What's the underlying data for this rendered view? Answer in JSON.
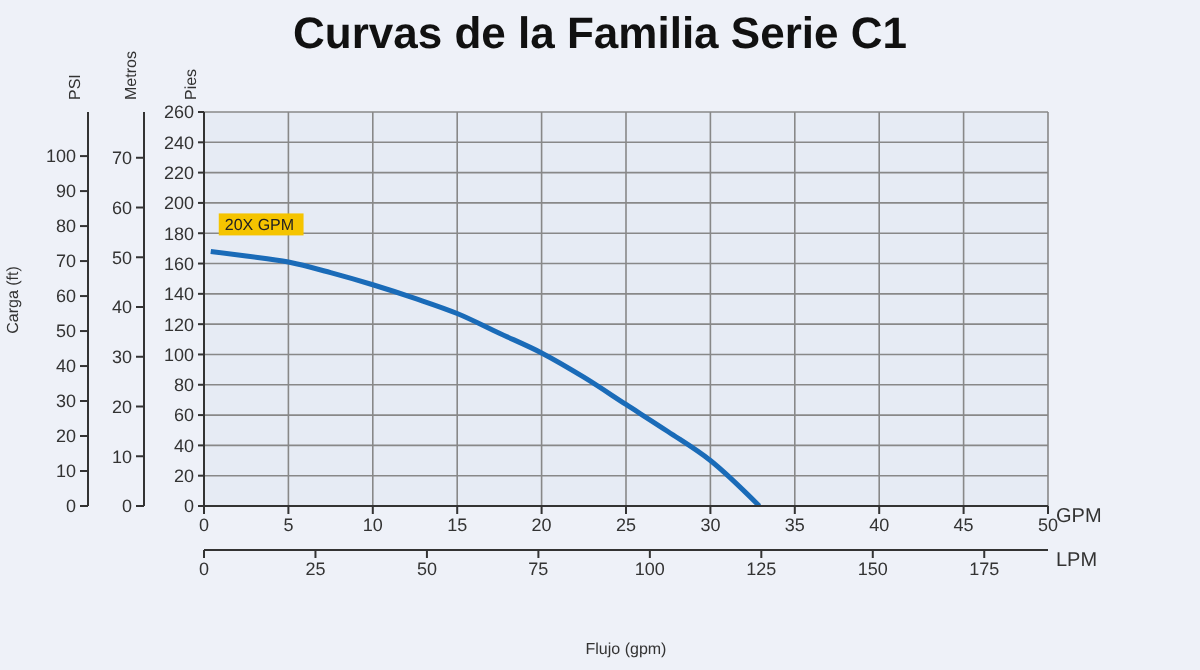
{
  "chart_data": {
    "type": "line",
    "title": "Curvas de la Familia Serie C1",
    "xlabel": "Flujo (gpm)",
    "x2label": "LPM",
    "ylabel": "Pies",
    "y2label": "PSI",
    "y3label": "Metros",
    "annotations": [
      "Carga (ft)",
      "GPM"
    ],
    "x": [
      0.4,
      2.5,
      5,
      7.5,
      10,
      12.5,
      15,
      17.5,
      20,
      22.5,
      25,
      27.5,
      30,
      32.9
    ],
    "series": [
      {
        "name": "20X GPM",
        "color": "#1a6bb8",
        "values": [
          168,
          165,
          161,
          154,
          146,
          137,
          127,
          114,
          101,
          85,
          67,
          49,
          30,
          0
        ]
      }
    ],
    "xlim": [
      0,
      50
    ],
    "xticks": [
      0,
      5,
      10,
      15,
      20,
      25,
      30,
      35,
      40,
      45,
      50
    ],
    "x2lim": [
      0,
      189.3
    ],
    "x2ticks": [
      0,
      25,
      50,
      75,
      100,
      125,
      150,
      175
    ],
    "ylim": [
      0,
      260
    ],
    "yticks": [
      0,
      20,
      40,
      60,
      80,
      100,
      120,
      140,
      160,
      180,
      200,
      220,
      240,
      260
    ],
    "y2lim": [
      0,
      112.6
    ],
    "y2ticks": [
      0,
      10,
      20,
      30,
      40,
      50,
      60,
      70,
      80,
      90,
      100
    ],
    "y3lim": [
      0,
      79.2
    ],
    "y3ticks": [
      0,
      10,
      20,
      30,
      40,
      50,
      60,
      70
    ],
    "grid": true,
    "marker": "none",
    "line_style": "solid"
  }
}
